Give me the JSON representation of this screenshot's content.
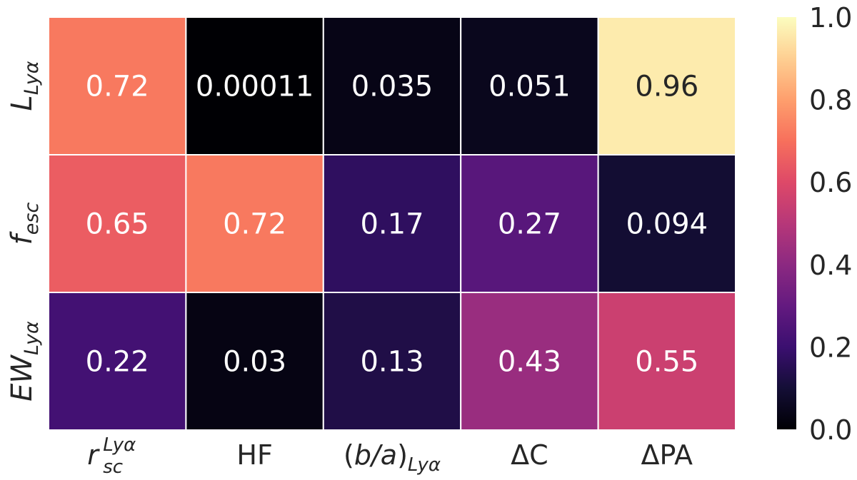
{
  "chart_data": {
    "type": "heatmap",
    "title": "",
    "rows": [
      {
        "label_main": "L",
        "label_sub": "Lyα"
      },
      {
        "label_main": "f",
        "label_sub": "esc"
      },
      {
        "label_main": "EW",
        "label_sub": "Lyα"
      }
    ],
    "columns": [
      {
        "label_main": "r",
        "label_sub": "sc",
        "label_sup": "Lyα",
        "label_pre": "",
        "label_post": ""
      },
      {
        "label_main": "HF",
        "label_sub": "",
        "label_sup": "",
        "label_pre": "",
        "label_post": ""
      },
      {
        "label_main": "b/a",
        "label_sub": "Lyα",
        "label_sup": "",
        "label_pre": "(",
        "label_post": ")"
      },
      {
        "label_main": "ΔC",
        "label_sub": "",
        "label_sup": "",
        "label_pre": "",
        "label_post": ""
      },
      {
        "label_main": "ΔPA",
        "label_sub": "",
        "label_sup": "",
        "label_pre": "",
        "label_post": ""
      }
    ],
    "values": [
      [
        0.72,
        0.00011,
        0.035,
        0.051,
        0.96
      ],
      [
        0.65,
        0.72,
        0.17,
        0.27,
        0.094
      ],
      [
        0.22,
        0.03,
        0.13,
        0.43,
        0.55
      ]
    ],
    "annotations": [
      [
        "0.72",
        "0.00011",
        "0.035",
        "0.051",
        "0.96"
      ],
      [
        "0.65",
        "0.72",
        "0.17",
        "0.27",
        "0.094"
      ],
      [
        "0.22",
        "0.03",
        "0.13",
        "0.43",
        "0.55"
      ]
    ],
    "colormap": "magma",
    "vmin": 0.0,
    "vmax": 1.0,
    "colorbar": {
      "ticks": [
        0.0,
        0.2,
        0.4,
        0.6,
        0.8,
        1.0
      ],
      "tick_labels": [
        "0.0",
        "0.2",
        "0.4",
        "0.6",
        "0.8",
        "1.0"
      ]
    },
    "colors": {
      "cell_border": "#ffffff",
      "text_light": "#ffffff",
      "text_dark": "#262626",
      "axis_text": "#262626"
    }
  }
}
